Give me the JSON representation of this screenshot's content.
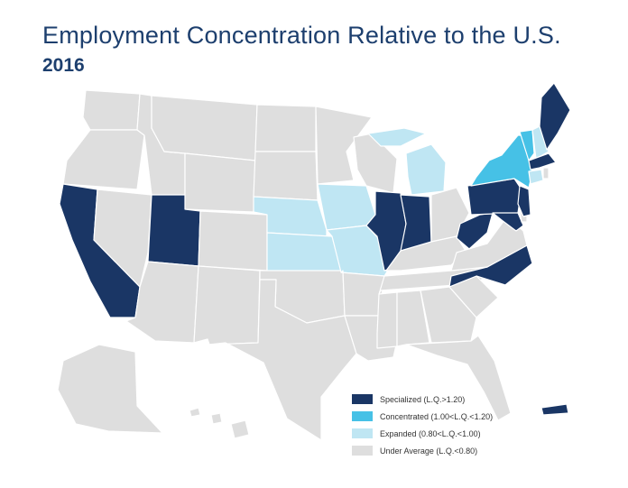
{
  "title": "Employment Concentration Relative to the U.S.",
  "subtitle": "2016",
  "colors": {
    "specialized": "#1a3665",
    "concentrated": "#46c1e6",
    "expanded": "#bfe6f3",
    "under": "#dedede",
    "border": "#ffffff"
  },
  "legend": [
    {
      "key": "specialized",
      "label": "Specialized (L.Q.>1.20)"
    },
    {
      "key": "concentrated",
      "label": "Concentrated (1.00<L.Q.<1.20)"
    },
    {
      "key": "expanded",
      "label": "Expanded (0.80<L.Q.<1.00)"
    },
    {
      "key": "under",
      "label": "Under Average (L.Q.<0.80)"
    }
  ],
  "states": {
    "specialized": [
      "California",
      "Utah",
      "Illinois",
      "Indiana",
      "Pennsylvania",
      "New Jersey",
      "Maryland",
      "West Virginia",
      "North Carolina",
      "Massachusetts",
      "Maine",
      "Puerto Rico"
    ],
    "concentrated": [
      "New York",
      "Vermont"
    ],
    "expanded": [
      "Michigan",
      "Nebraska",
      "Kansas",
      "Iowa",
      "Missouri",
      "New Hampshire",
      "Connecticut"
    ],
    "under": [
      "Washington",
      "Oregon",
      "Idaho",
      "Montana",
      "Wyoming",
      "Nevada",
      "Arizona",
      "Colorado",
      "New Mexico",
      "North Dakota",
      "South Dakota",
      "Oklahoma",
      "Texas",
      "Minnesota",
      "Wisconsin",
      "Arkansas",
      "Louisiana",
      "Kentucky",
      "Tennessee",
      "Mississippi",
      "Alabama",
      "Georgia",
      "Florida",
      "South Carolina",
      "Ohio",
      "Virginia",
      "Delaware",
      "Rhode Island",
      "Alaska",
      "Hawaii"
    ]
  }
}
